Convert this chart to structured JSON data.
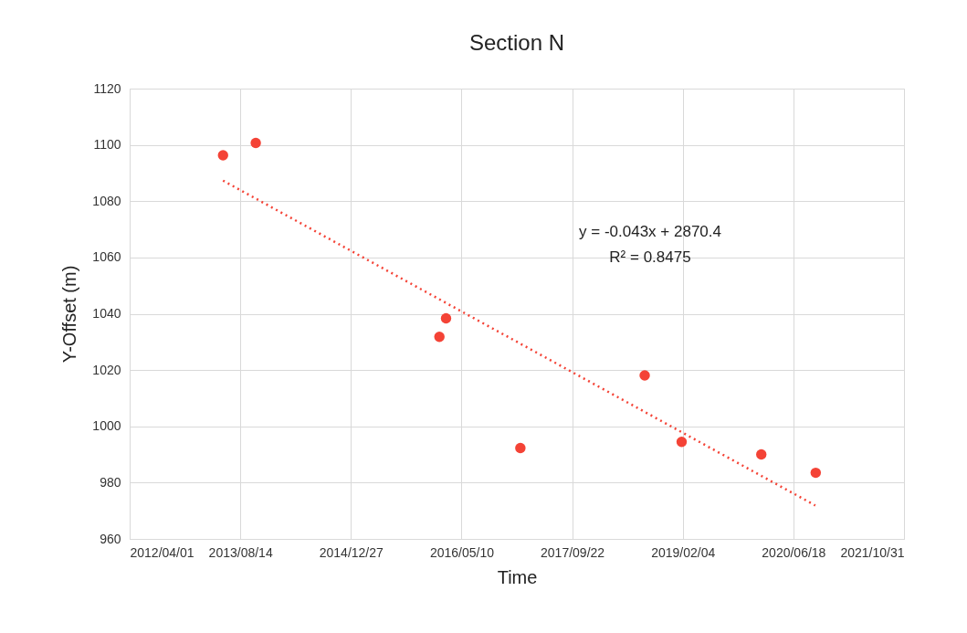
{
  "chart_data": {
    "type": "scatter",
    "title": "Section N",
    "xlabel": "Time",
    "ylabel": "Y-Offset (m)",
    "series": [
      {
        "color": "#f44336",
        "x": [
          "2013-05-28",
          "2013-10-23",
          "2016-01-31",
          "2016-03-01",
          "2017-01-31",
          "2018-08-16",
          "2019-01-30",
          "2020-01-25",
          "2020-09-27"
        ],
        "values": [
          1096.3,
          1100.7,
          1031.8,
          1038.4,
          992.3,
          1018.1,
          994.5,
          990.0,
          983.5
        ]
      },
      {
        "type": "line",
        "color": "#f44336",
        "line_style": "dotted",
        "marker": "none",
        "x": [
          "2013-05-28",
          "2020-09-25"
        ],
        "values": [
          1087.3,
          971.9
        ]
      }
    ],
    "xlim": [
      "2012-04-01",
      "2021-10-31"
    ],
    "xticks": [
      {
        "value": "2012-04-01",
        "label": "2012/04/01"
      },
      {
        "value": "2013-08-14",
        "label": "2013/08/14"
      },
      {
        "value": "2014-12-27",
        "label": "2014/12/27"
      },
      {
        "value": "2016-05-10",
        "label": "2016/05/10"
      },
      {
        "value": "2017-09-22",
        "label": "2017/09/22"
      },
      {
        "value": "2019-02-04",
        "label": "2019/02/04"
      },
      {
        "value": "2020-06-18",
        "label": "2020/06/18"
      },
      {
        "value": "2021-10-31",
        "label": "2021/10/31"
      }
    ],
    "ylim": [
      960,
      1120
    ],
    "yticks": [
      960,
      980,
      1000,
      1020,
      1040,
      1060,
      1080,
      1100,
      1120
    ],
    "grid": true,
    "marker": "circle",
    "annotations": [
      "y = -0.043x + 2870.4",
      "R² = 0.8475"
    ]
  }
}
